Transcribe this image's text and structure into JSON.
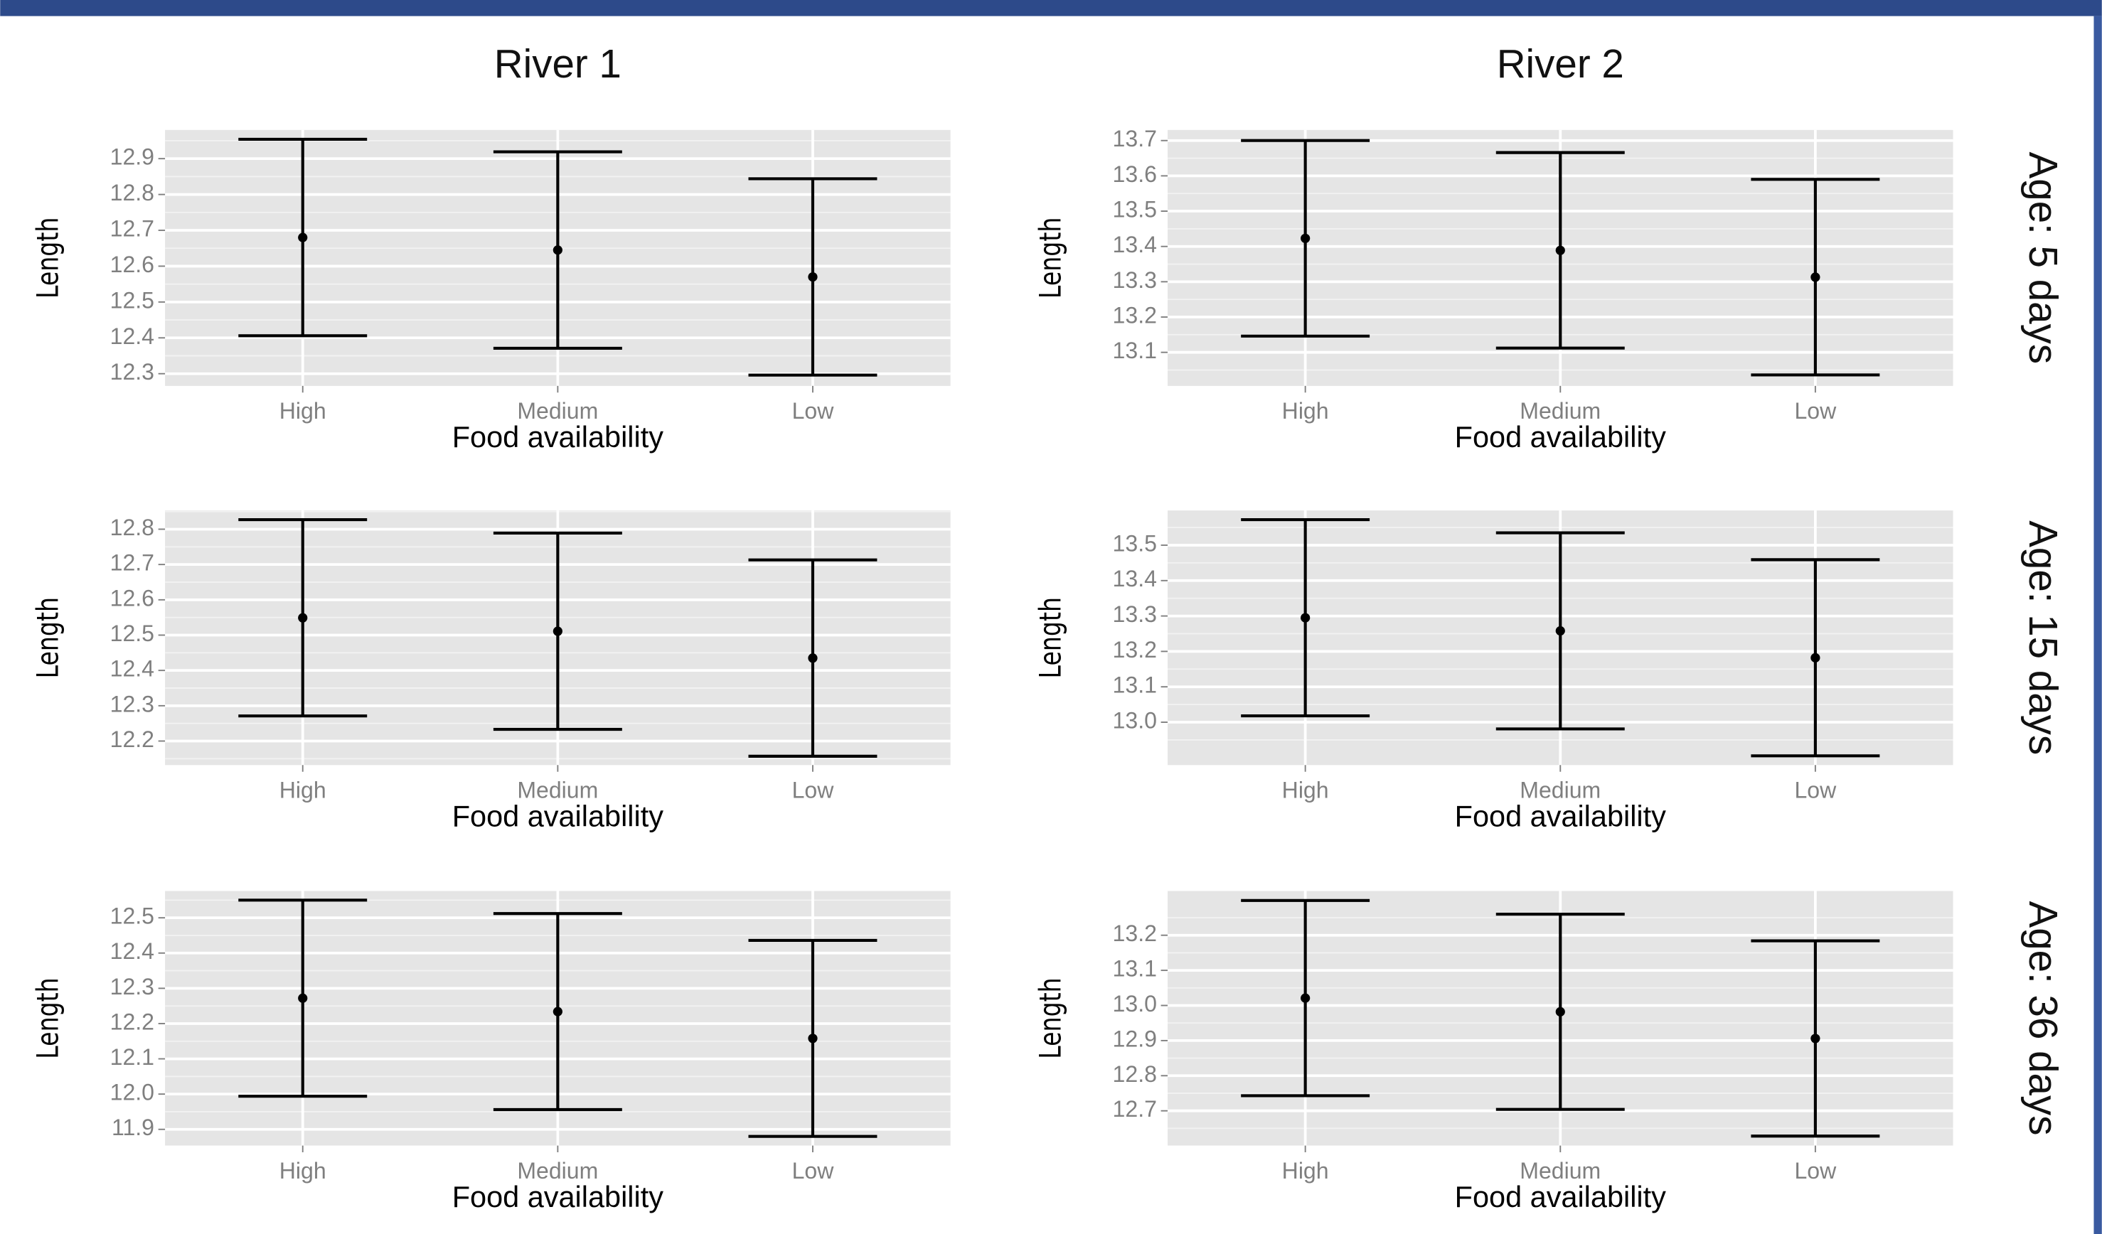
{
  "facets": {
    "columns": [
      "River 1",
      "River 2"
    ],
    "rows": [
      "Age: 5 days",
      "Age: 15 days",
      "Age: 36 days"
    ]
  },
  "chart_data": [
    {
      "type": "errorbar",
      "ylabel": "Length",
      "xlabel": "Food availability",
      "categories": [
        "High",
        "Medium",
        "Low"
      ],
      "values": [
        12.68,
        12.645,
        12.57
      ],
      "errors": [
        0.274,
        0.274,
        0.274
      ],
      "color": "#000000",
      "ylim": [
        12.266,
        12.98
      ],
      "yticks": [
        12.3,
        12.4,
        12.5,
        12.6,
        12.7,
        12.8,
        12.9
      ],
      "grid": true
    },
    {
      "type": "errorbar",
      "ylabel": "Length",
      "xlabel": "Food availability",
      "categories": [
        "High",
        "Medium",
        "Low"
      ],
      "values": [
        13.423,
        13.389,
        13.313
      ],
      "errors": [
        0.277,
        0.277,
        0.277
      ],
      "color": "#000000",
      "ylim": [
        13.005,
        13.73
      ],
      "yticks": [
        13.1,
        13.2,
        13.3,
        13.4,
        13.5,
        13.6,
        13.7
      ],
      "grid": true
    },
    {
      "type": "errorbar",
      "ylabel": "Length",
      "xlabel": "Food availability",
      "categories": [
        "High",
        "Medium",
        "Low"
      ],
      "values": [
        12.549,
        12.511,
        12.435
      ],
      "errors": [
        0.278,
        0.278,
        0.278
      ],
      "color": "#000000",
      "ylim": [
        12.132,
        12.853
      ],
      "yticks": [
        12.2,
        12.3,
        12.4,
        12.5,
        12.6,
        12.7,
        12.8
      ],
      "grid": true
    },
    {
      "type": "errorbar",
      "ylabel": "Length",
      "xlabel": "Food availability",
      "categories": [
        "High",
        "Medium",
        "Low"
      ],
      "values": [
        13.295,
        13.258,
        13.182
      ],
      "errors": [
        0.277,
        0.277,
        0.277
      ],
      "color": "#000000",
      "ylim": [
        12.879,
        13.598
      ],
      "yticks": [
        {
          "value": 13,
          "label": "13.0"
        },
        13.1,
        13.2,
        13.3,
        13.4,
        13.5
      ],
      "grid": true
    },
    {
      "type": "errorbar",
      "ylabel": "Length",
      "xlabel": "Food availability",
      "categories": [
        "High",
        "Medium",
        "Low"
      ],
      "values": [
        12.272,
        12.234,
        12.158
      ],
      "errors": [
        0.278,
        0.278,
        0.278
      ],
      "color": "#000000",
      "ylim": [
        11.854,
        12.576
      ],
      "yticks": [
        11.9,
        {
          "value": 12,
          "label": "12.0"
        },
        12.1,
        12.2,
        12.3,
        12.4,
        12.5
      ],
      "grid": true
    },
    {
      "type": "errorbar",
      "ylabel": "Length",
      "xlabel": "Food availability",
      "categories": [
        "High",
        "Medium",
        "Low"
      ],
      "values": [
        13.021,
        12.982,
        12.906
      ],
      "errors": [
        0.278,
        0.278,
        0.278
      ],
      "color": "#000000",
      "ylim": [
        12.601,
        13.326
      ],
      "yticks": [
        12.7,
        12.8,
        12.9,
        {
          "value": 13,
          "label": "13.0"
        },
        13.1,
        13.2
      ],
      "grid": true
    }
  ]
}
